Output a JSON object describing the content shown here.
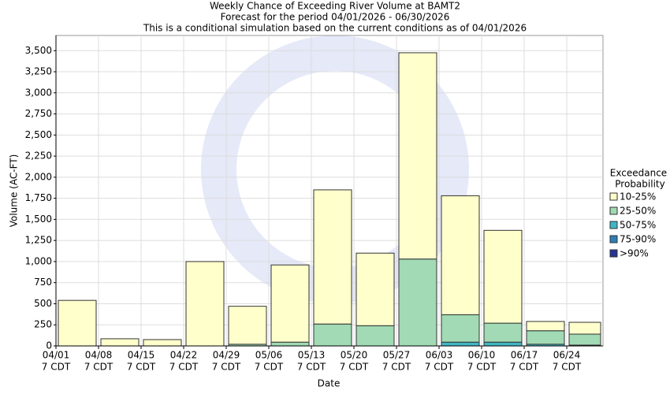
{
  "chart_data": {
    "type": "stacked_bar",
    "title": [
      "Weekly Chance of Exceeding River Volume at BAMT2",
      "Forecast for the period 04/01/2026 - 06/30/2026",
      "This is a conditional simulation based on the current conditions as of 04/01/2026"
    ],
    "x_label": "Date",
    "y_label": "Volume (AC-FT)",
    "legend_title": [
      "Exceedance",
      "Probability"
    ],
    "legend_position": "right",
    "grid": true,
    "categories": [
      [
        "04/01",
        "7 CDT"
      ],
      [
        "04/08",
        "7 CDT"
      ],
      [
        "04/15",
        "7 CDT"
      ],
      [
        "04/22",
        "7 CDT"
      ],
      [
        "04/29",
        "7 CDT"
      ],
      [
        "05/06",
        "7 CDT"
      ],
      [
        "05/13",
        "7 CDT"
      ],
      [
        "05/20",
        "7 CDT"
      ],
      [
        "05/27",
        "7 CDT"
      ],
      [
        "06/03",
        "7 CDT"
      ],
      [
        "06/10",
        "7 CDT"
      ],
      [
        "06/17",
        "7 CDT"
      ],
      [
        "06/24",
        "7 CDT"
      ]
    ],
    "series": [
      {
        "name": "10-25%",
        "color": "#ffffcc",
        "values": [
          540,
          85,
          75,
          1000,
          450,
          915,
          1590,
          860,
          2445,
          1410,
          1100,
          110,
          140
        ]
      },
      {
        "name": "25-50%",
        "color": "#a1dab4",
        "values": [
          0,
          0,
          0,
          0,
          20,
          45,
          260,
          240,
          1030,
          325,
          225,
          160,
          130
        ]
      },
      {
        "name": "50-75%",
        "color": "#41b6c4",
        "values": [
          0,
          0,
          0,
          0,
          0,
          0,
          0,
          0,
          0,
          45,
          45,
          20,
          10
        ]
      },
      {
        "name": "75-90%",
        "color": "#2c7fb8",
        "values": [
          0,
          0,
          0,
          0,
          0,
          0,
          0,
          0,
          0,
          0,
          0,
          0,
          0
        ]
      },
      {
        "name": ">90%",
        "color": "#253494",
        "values": [
          0,
          0,
          0,
          0,
          0,
          0,
          0,
          0,
          0,
          0,
          0,
          0,
          0
        ]
      }
    ],
    "ylim": [
      0,
      3680
    ],
    "yticks": [
      0,
      250,
      500,
      750,
      {
        "value": 1000,
        "label": "1,000"
      },
      {
        "value": 1250,
        "label": "1,250"
      },
      {
        "value": 1500,
        "label": "1,500"
      },
      {
        "value": 1750,
        "label": "1,750"
      },
      {
        "value": 2000,
        "label": "2,000"
      },
      {
        "value": 2250,
        "label": "2,250"
      },
      {
        "value": 2500,
        "label": "2,500"
      },
      {
        "value": 2750,
        "label": "2,750"
      },
      {
        "value": 3000,
        "label": "3,000"
      },
      {
        "value": 3250,
        "label": "3,250"
      },
      {
        "value": 3500,
        "label": "3,500"
      }
    ]
  }
}
